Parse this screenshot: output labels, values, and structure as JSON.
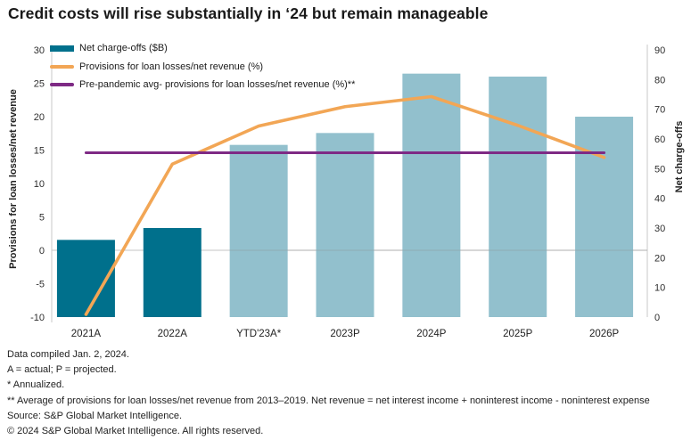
{
  "title": "Credit costs will rise substantially in ‘24 but remain manageable",
  "legend": {
    "items": [
      {
        "label": "Net charge-offs ($B)",
        "swatch": "bar",
        "color": "#00708c"
      },
      {
        "label": "Provisions for loan losses/net revenue (%)",
        "swatch": "line",
        "color": "#f2a655"
      },
      {
        "label": "Pre-pandemic avg- provisions for loan losses/net revenue (%)**",
        "swatch": "line",
        "color": "#7e2a85"
      }
    ]
  },
  "chart_data": {
    "type": "combo",
    "categories": [
      "2021A",
      "2022A",
      "YTD'23A*",
      "2023P",
      "2024P",
      "2025P",
      "2026P"
    ],
    "axes": {
      "left": {
        "title": "Provisions for loan losses/net revenue",
        "min": -10,
        "max": 30,
        "step": 5,
        "ticks": [
          30,
          25,
          20,
          15,
          10,
          5,
          0,
          -5,
          -10
        ]
      },
      "right": {
        "title": "Net charge-offs",
        "min": 0,
        "max": 90,
        "step": 10,
        "ticks": [
          90,
          80,
          70,
          60,
          50,
          40,
          30,
          20,
          10,
          0
        ]
      }
    },
    "series": [
      {
        "name": "Net charge-offs ($B)",
        "type": "bar",
        "axis": "right",
        "values": [
          26,
          30,
          58,
          62,
          82,
          81,
          67.5
        ],
        "colors": [
          "#00708c",
          "#00708c",
          "#92c0cd",
          "#92c0cd",
          "#92c0cd",
          "#92c0cd",
          "#92c0cd"
        ]
      },
      {
        "name": "Provisions for loan losses/net revenue (%)",
        "type": "line",
        "axis": "left",
        "color": "#f2a655",
        "values": [
          -9.6,
          12.9,
          18.6,
          21.5,
          23,
          18.7,
          13.9
        ]
      },
      {
        "name": "Pre-pandemic avg- provisions for loan losses/net revenue (%)**",
        "type": "line",
        "axis": "left",
        "color": "#7e2a85",
        "values": [
          14.6,
          14.6,
          14.6,
          14.6,
          14.6,
          14.6,
          14.6
        ]
      }
    ],
    "grid": {
      "zero_line": true,
      "zero_line_color": "#c6c6c6"
    },
    "legend_position": "top-left-inside"
  },
  "footnotes": [
    "Data compiled Jan. 2, 2024.",
    "A = actual; P = projected.",
    "* Annualized.",
    "** Average of provisions for loan losses/net revenue from 2013–2019. Net revenue = net interest income + noninterest income - noninterest expense",
    "Source: S&P Global Market Intelligence.",
    "© 2024 S&P Global Market Intelligence. All rights reserved."
  ]
}
